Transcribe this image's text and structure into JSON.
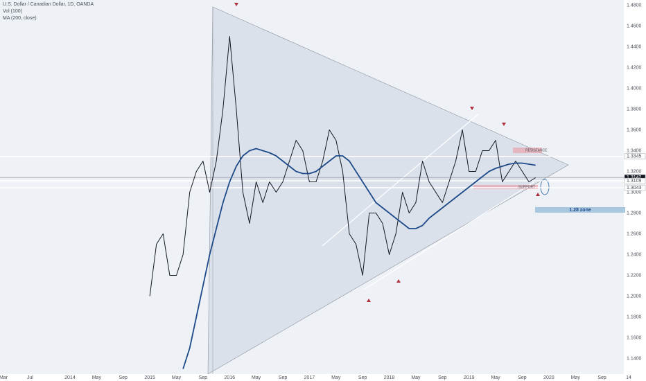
{
  "chart_data": {
    "type": "line",
    "volume_label": "Vol (100)",
    "x": [
      "2015-01",
      "2015-02",
      "2015-03",
      "2015-04",
      "2015-05",
      "2015-06",
      "2015-07",
      "2015-08",
      "2015-09",
      "2015-10",
      "2015-11",
      "2015-12",
      "2016-01",
      "2016-02",
      "2016-03",
      "2016-04",
      "2016-05",
      "2016-06",
      "2016-07",
      "2016-08",
      "2016-09",
      "2016-10",
      "2016-11",
      "2016-12",
      "2017-01",
      "2017-02",
      "2017-03",
      "2017-04",
      "2017-05",
      "2017-06",
      "2017-07",
      "2017-08",
      "2017-09",
      "2017-10",
      "2017-11",
      "2017-12",
      "2018-01",
      "2018-02",
      "2018-03",
      "2018-04",
      "2018-05",
      "2018-06",
      "2018-07",
      "2018-08",
      "2018-09",
      "2018-10",
      "2018-11",
      "2018-12",
      "2019-01",
      "2019-02",
      "2019-03",
      "2019-04",
      "2019-05",
      "2019-06",
      "2019-07",
      "2019-08",
      "2019-09",
      "2019-10",
      "2019-11"
    ],
    "series": [
      {
        "name": "U.S. Dollar / Canadian Dollar, 1D, OANDA",
        "color": "#131722",
        "values": [
          1.2,
          1.25,
          1.26,
          1.22,
          1.22,
          1.24,
          1.3,
          1.32,
          1.33,
          1.3,
          1.33,
          1.38,
          1.45,
          1.38,
          1.3,
          1.27,
          1.31,
          1.29,
          1.31,
          1.3,
          1.31,
          1.33,
          1.35,
          1.34,
          1.31,
          1.31,
          1.33,
          1.36,
          1.35,
          1.32,
          1.26,
          1.25,
          1.22,
          1.28,
          1.28,
          1.27,
          1.24,
          1.26,
          1.3,
          1.28,
          1.29,
          1.33,
          1.31,
          1.3,
          1.29,
          1.31,
          1.33,
          1.36,
          1.32,
          1.32,
          1.34,
          1.34,
          1.35,
          1.31,
          1.32,
          1.33,
          1.32,
          1.31,
          1.314
        ]
      },
      {
        "name": "MA (200, close)",
        "color": "#1e4a8a",
        "values": [
          null,
          null,
          null,
          null,
          null,
          1.13,
          1.15,
          1.18,
          1.21,
          1.24,
          1.265,
          1.29,
          1.31,
          1.325,
          1.335,
          1.34,
          1.342,
          1.34,
          1.338,
          1.335,
          1.33,
          1.325,
          1.32,
          1.318,
          1.318,
          1.32,
          1.325,
          1.33,
          1.335,
          1.335,
          1.33,
          1.32,
          1.31,
          1.3,
          1.29,
          1.285,
          1.28,
          1.275,
          1.27,
          1.265,
          1.265,
          1.268,
          1.275,
          1.28,
          1.285,
          1.29,
          1.295,
          1.3,
          1.305,
          1.31,
          1.315,
          1.32,
          1.323,
          1.325,
          1.327,
          1.328,
          1.328,
          1.327,
          1.326
        ]
      }
    ],
    "xlim": [
      "2013-03",
      "2021-01"
    ],
    "xticks": [
      {
        "value": "2013-03",
        "label": "Mar"
      },
      {
        "value": "2013-07",
        "label": "Jul"
      },
      {
        "value": "2014-01",
        "label": "2014"
      },
      {
        "value": "2014-05",
        "label": "May"
      },
      {
        "value": "2014-09",
        "label": "Sep"
      },
      {
        "value": "2015-01",
        "label": "2015"
      },
      {
        "value": "2015-05",
        "label": "May"
      },
      {
        "value": "2015-09",
        "label": "Sep"
      },
      {
        "value": "2016-01",
        "label": "2016"
      },
      {
        "value": "2016-05",
        "label": "May"
      },
      {
        "value": "2016-09",
        "label": "Sep"
      },
      {
        "value": "2017-01",
        "label": "2017"
      },
      {
        "value": "2017-05",
        "label": "May"
      },
      {
        "value": "2017-09",
        "label": "Sep"
      },
      {
        "value": "2018-01",
        "label": "2018"
      },
      {
        "value": "2018-05",
        "label": "May"
      },
      {
        "value": "2018-09",
        "label": "Sep"
      },
      {
        "value": "2019-01",
        "label": "2019"
      },
      {
        "value": "2019-05",
        "label": "May"
      },
      {
        "value": "2019-09",
        "label": "Sep"
      },
      {
        "value": "2020-01",
        "label": "2020"
      },
      {
        "value": "2020-05",
        "label": "May"
      },
      {
        "value": "2020-09",
        "label": "Sep"
      },
      {
        "value": "2021-01",
        "label": "14"
      }
    ],
    "ylim": [
      1.125,
      1.485
    ],
    "yticks": [
      {
        "value": 1.48,
        "label": "1.4800"
      },
      {
        "value": 1.46,
        "label": "1.4600"
      },
      {
        "value": 1.44,
        "label": "1.4400"
      },
      {
        "value": 1.42,
        "label": "1.4200"
      },
      {
        "value": 1.4,
        "label": "1.4000"
      },
      {
        "value": 1.38,
        "label": "1.3800"
      },
      {
        "value": 1.36,
        "label": "1.3600"
      },
      {
        "value": 1.34,
        "label": "1.3400"
      },
      {
        "value": 1.32,
        "label": "1.3200"
      },
      {
        "value": 1.3,
        "label": "1.3000"
      },
      {
        "value": 1.28,
        "label": "1.2800"
      },
      {
        "value": 1.26,
        "label": "1.2600"
      },
      {
        "value": 1.24,
        "label": "1.2400"
      },
      {
        "value": 1.22,
        "label": "1.2200"
      },
      {
        "value": 1.2,
        "label": "1.2000"
      },
      {
        "value": 1.18,
        "label": "1.1800"
      },
      {
        "value": 1.16,
        "label": "1.1600"
      },
      {
        "value": 1.14,
        "label": "1.1400"
      }
    ],
    "grid": false,
    "levels": [
      1.3345,
      1.3142,
      1.3109,
      1.3043
    ],
    "level_colors": [
      "#ffffff",
      "#8a8f99",
      "#ffffff",
      "#ffffff"
    ],
    "annotations": [
      "RESISTANCE",
      "SUPPORT",
      "1.28 zone"
    ]
  }
}
